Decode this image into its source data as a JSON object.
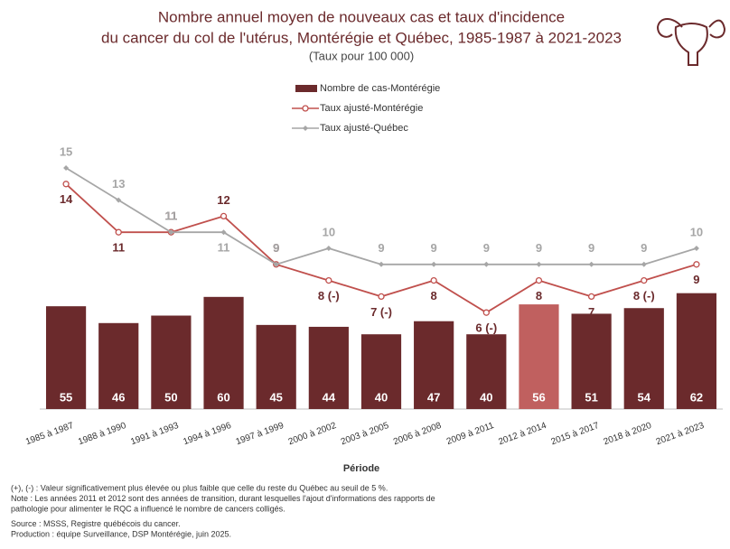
{
  "chart_data": {
    "type": "bar-line",
    "title": "Nombre annuel moyen de nouveaux cas et taux d'incidence",
    "title_line2": "du cancer du col de l'utérus, Montérégie et Québec, 1985-1987 à 2021-2023",
    "subtitle": "(Taux pour 100 000)",
    "x_label": "Période",
    "categories": [
      "1985 à 1987",
      "1988 à 1990",
      "1991 à 1993",
      "1994 à 1996",
      "1997 à 1999",
      "2000 à 2002",
      "2003 à 2005",
      "2006 à 2008",
      "2009 à 2011",
      "2012 à 2014",
      "2015 à 2017",
      "2018 à 2020",
      "2021 à 2023"
    ],
    "ylim": [
      0,
      215
    ],
    "y2lim": [
      0,
      25
    ],
    "series": [
      {
        "name": "Nombre de cas-Montérégie",
        "type": "bar",
        "color": "#6b2a2c",
        "colors": [
          "#6b2a2c",
          "#6b2a2c",
          "#6b2a2c",
          "#6b2a2c",
          "#6b2a2c",
          "#6b2a2c",
          "#6b2a2c",
          "#6b2a2c",
          "#6b2a2c",
          "#c0605f",
          "#6b2a2c",
          "#6b2a2c",
          "#6b2a2c"
        ],
        "values": [
          55,
          46,
          50,
          60,
          45,
          44,
          40,
          47,
          40,
          56,
          51,
          54,
          62
        ]
      },
      {
        "name": "Taux ajusté-Montérégie",
        "type": "line",
        "axis": "y2",
        "color": "#c0504d",
        "label_color": "#6b2a2c",
        "marker": "circle",
        "values": [
          14,
          11,
          11,
          12,
          9,
          8,
          7,
          8,
          6,
          8,
          7,
          8,
          9
        ],
        "value_labels": [
          "14",
          "11",
          "11",
          "12",
          "9",
          "8 (-)",
          "7 (-)",
          "8",
          "6 (-)",
          "8",
          "7",
          "8 (-)",
          "9"
        ]
      },
      {
        "name": "Taux ajusté-Québec",
        "type": "line",
        "axis": "y2",
        "color": "#a6a6a6",
        "label_color": "#a6a6a6",
        "marker": "diamond",
        "values": [
          15,
          13,
          11,
          11,
          9,
          10,
          9,
          9,
          9,
          9,
          9,
          9,
          10
        ]
      }
    ],
    "footnotes": [
      "(+), (-) : Valeur significativement plus élevée ou plus faible que celle du reste du Québec au seuil de 5 %.",
      "Note : Les années 2011 et 2012 sont des années de transition, durant lesquelles l'ajout d'informations des rapports de",
      "pathologie pour alimenter le RQC a influencé le nombre de cancers colligés.",
      "Source : MSSS, Registre québécois du cancer.",
      "Production : équipe Surveillance, DSP Montérégie, juin 2025."
    ]
  }
}
